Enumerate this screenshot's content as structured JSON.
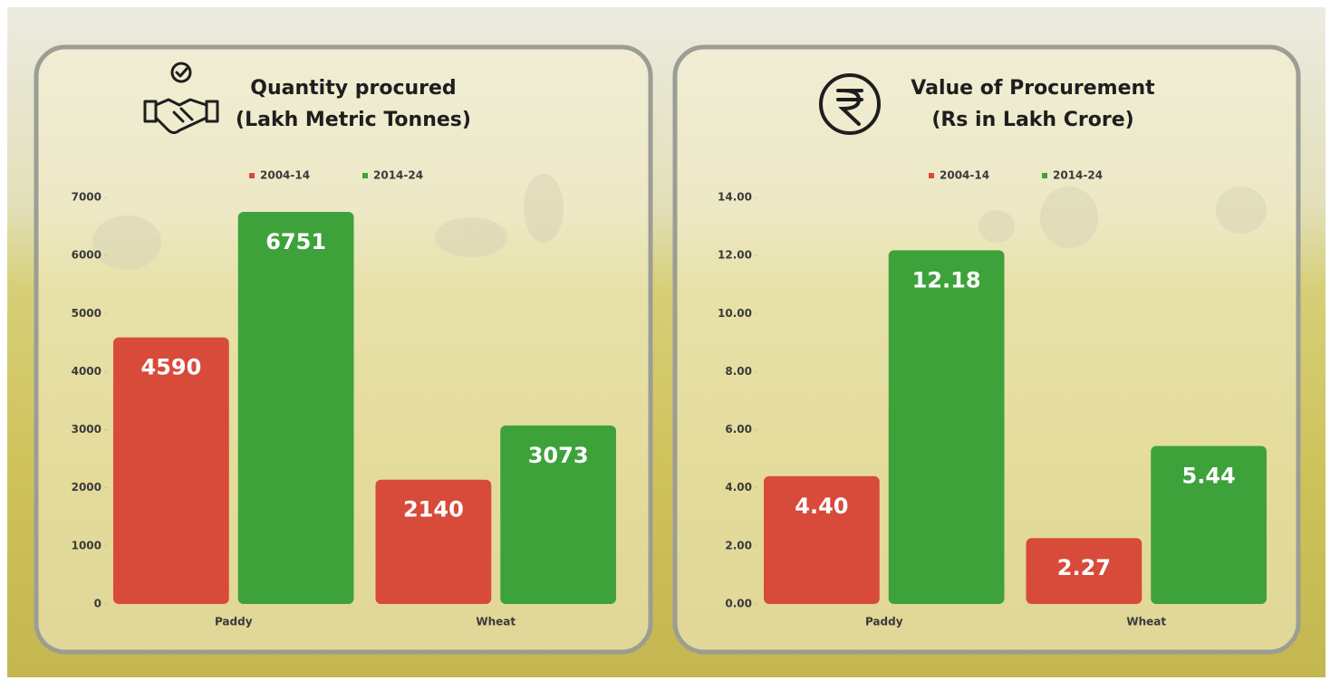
{
  "chart_data": [
    {
      "type": "bar",
      "title": "Quantity procured",
      "subtitle": "(Lakh Metric Tonnes)",
      "categories": [
        "Paddy",
        "Wheat"
      ],
      "series": [
        {
          "name": "2004-14",
          "color": "#d84a3a",
          "values": [
            4590,
            2140
          ]
        },
        {
          "name": "2014-24",
          "color": "#3da23a",
          "values": [
            6751,
            3073
          ]
        }
      ],
      "ylim": [
        0,
        7000
      ],
      "yticks": [
        0,
        1000,
        2000,
        3000,
        4000,
        5000,
        6000,
        7000
      ],
      "legend": "top",
      "grid": false
    },
    {
      "type": "bar",
      "title": "Value of Procurement",
      "subtitle": "(Rs in Lakh Crore)",
      "categories": [
        "Paddy",
        "Wheat"
      ],
      "series": [
        {
          "name": "2004-14",
          "color": "#d84a3a",
          "values": [
            4.4,
            2.27
          ],
          "value_labels": [
            "4.40",
            "2.27"
          ]
        },
        {
          "name": "2014-24",
          "color": "#3da23a",
          "values": [
            12.18,
            5.44
          ]
        }
      ],
      "ylim": [
        0,
        14
      ],
      "yticks": [
        {
          "value": 0,
          "label": "0.00"
        },
        {
          "value": 2,
          "label": "2.00"
        },
        {
          "value": 4,
          "label": "4.00"
        },
        {
          "value": 6,
          "label": "6.00"
        },
        {
          "value": 8,
          "label": "8.00"
        },
        {
          "value": 10,
          "label": "10.00"
        },
        {
          "value": 12,
          "label": "12.00"
        },
        {
          "value": 14,
          "label": "14.00"
        }
      ],
      "legend": "top",
      "grid": false
    }
  ]
}
